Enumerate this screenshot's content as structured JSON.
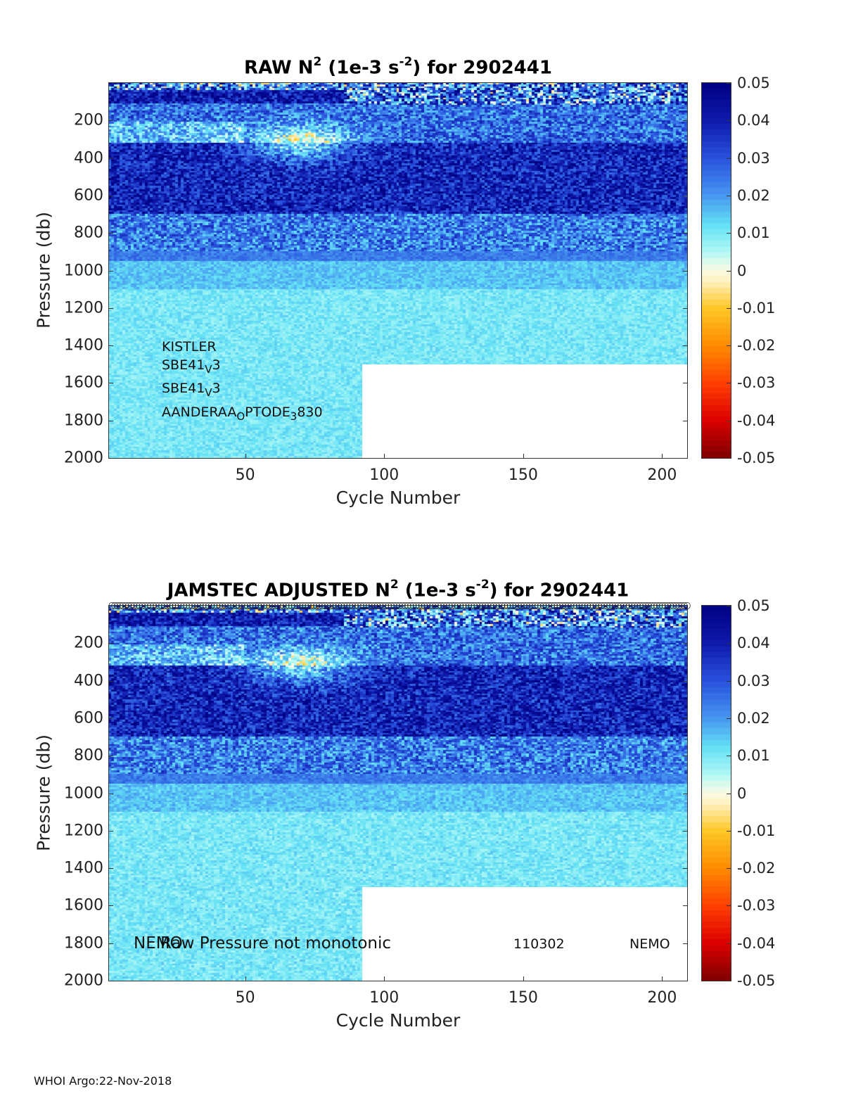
{
  "footer": "WHOI Argo:22-Nov-2018",
  "colorbar": {
    "ticks": [
      "0.05",
      "0.04",
      "0.03",
      "0.02",
      "0.01",
      "0",
      "-0.01",
      "-0.02",
      "-0.03",
      "-0.04",
      "-0.05"
    ],
    "range": [
      -0.05,
      0.05
    ],
    "colors": {
      "neg_extreme": "#7f0000",
      "neg_mid": "#ff4000",
      "neg_low": "#ffc000",
      "zero": "#fffbe0",
      "pos_low": "#a8f4f0",
      "pos_mid": "#3d7ff0",
      "pos_extreme": "#00008b"
    }
  },
  "chart_data": [
    {
      "type": "heatmap",
      "title_main": "RAW N",
      "title_sup": "2",
      "title_units_pre": " (1e-3 s",
      "title_units_sup": "-2",
      "title_post": ") for 2902441",
      "xlabel": "Cycle Number",
      "ylabel": "Pressure (db)",
      "xlim": [
        1,
        209
      ],
      "ylim": [
        2000,
        0
      ],
      "y_reversed": true,
      "xticks": [
        "50",
        "100",
        "150",
        "200"
      ],
      "xtick_values": [
        50,
        100,
        150,
        200
      ],
      "yticks": [
        "200",
        "400",
        "600",
        "800",
        "1000",
        "1200",
        "1400",
        "1600",
        "1800",
        "2000"
      ],
      "ytick_values": [
        200,
        400,
        600,
        800,
        1000,
        1200,
        1400,
        1600,
        1800,
        2000
      ],
      "no_data_region": {
        "cycle_from": 92,
        "pressure_from": 1500
      },
      "clim": [
        -0.05,
        0.05
      ],
      "sensors": [
        {
          "base": "KISTLER",
          "sub": "",
          "post": ""
        },
        {
          "base": "SBE41",
          "sub": "V",
          "post": "3"
        },
        {
          "base": "SBE41",
          "sub": "V",
          "post": "3"
        },
        {
          "base": "AANDERAA",
          "sub": "O",
          "post": "PTODE",
          "sub2": "3",
          "post2": "830"
        }
      ]
    },
    {
      "type": "heatmap",
      "title_main": "JAMSTEC  ADJUSTED N",
      "title_sup": "2",
      "title_units_pre": " (1e-3 s",
      "title_units_sup": "-2",
      "title_post": ") for 2902441",
      "xlabel": "Cycle Number",
      "ylabel": "Pressure (db)",
      "xlim": [
        1,
        209
      ],
      "ylim": [
        2000,
        0
      ],
      "y_reversed": true,
      "xticks": [
        "50",
        "100",
        "150",
        "200"
      ],
      "xtick_values": [
        50,
        100,
        150,
        200
      ],
      "yticks": [
        "200",
        "400",
        "600",
        "800",
        "1000",
        "1200",
        "1400",
        "1600",
        "1800",
        "2000"
      ],
      "ytick_values": [
        200,
        400,
        600,
        800,
        1000,
        1200,
        1400,
        1600,
        1800,
        2000
      ],
      "no_data_region": {
        "cycle_from": 92,
        "pressure_from": 1500
      },
      "clim": [
        -0.05,
        0.05
      ],
      "annotations": {
        "nemo_left": "NEMO",
        "raw_note": "Raw Pressure not monotonic",
        "code": "110302",
        "nemo_right": "NEMO"
      }
    }
  ]
}
